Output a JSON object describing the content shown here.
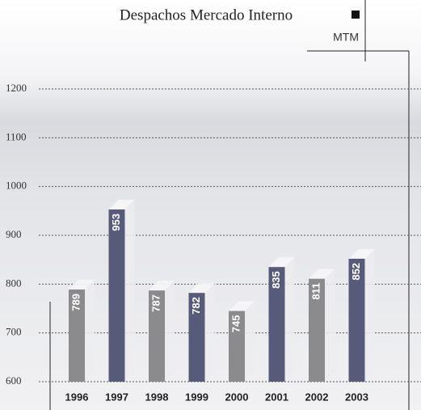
{
  "chart_data": {
    "type": "bar3d",
    "title": "Despachos Mercado Interno",
    "unit": "MTM",
    "categories": [
      "1996",
      "1997",
      "1998",
      "1999",
      "2000",
      "2001",
      "2002",
      "2003"
    ],
    "values": [
      789,
      953,
      787,
      782,
      745,
      835,
      811,
      852
    ],
    "colors": [
      "#8b8b8d",
      "#575b79",
      "#8b8b8d",
      "#575b79",
      "#8b8b8d",
      "#575b79",
      "#8b8b8d",
      "#575b79"
    ],
    "ylim": [
      600,
      1200
    ],
    "yticks": [
      600,
      700,
      800,
      900,
      1000,
      1100,
      1200
    ],
    "grid": true
  }
}
